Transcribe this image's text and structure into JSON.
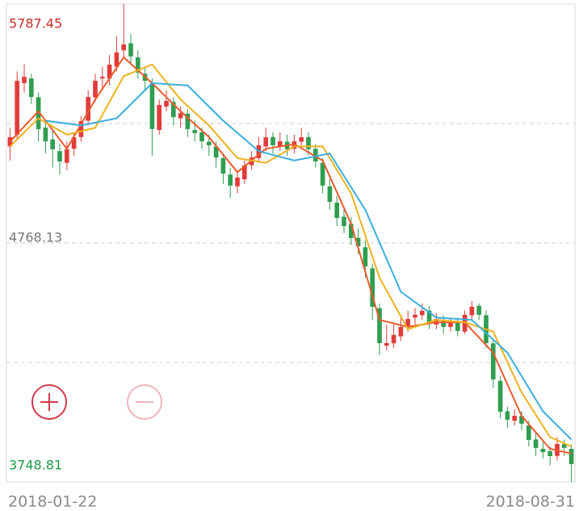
{
  "chart_data": {
    "type": "candlestick",
    "categories": [
      "2018-01-22",
      null,
      null,
      null,
      null,
      null,
      null,
      null,
      null,
      null,
      null,
      null,
      null,
      null,
      null,
      null,
      null,
      null,
      null,
      null,
      null,
      null,
      null,
      null,
      null,
      null,
      null,
      null,
      null,
      null,
      null,
      null,
      null,
      null,
      null,
      null,
      null,
      null,
      null,
      null,
      null,
      null,
      null,
      null,
      null,
      null,
      null,
      null,
      null,
      null,
      null,
      null,
      null,
      null,
      null,
      null,
      null,
      null,
      null,
      null,
      null,
      null,
      null,
      null,
      null,
      null,
      null,
      null,
      null,
      null,
      null,
      null,
      null,
      null,
      null,
      null,
      null,
      null,
      null,
      "2018-08-31"
    ],
    "ohlc": [
      [
        5180,
        5260,
        5120,
        5219
      ],
      [
        5230,
        5500,
        5210,
        5460
      ],
      [
        5450,
        5530,
        5410,
        5477
      ],
      [
        5470,
        5490,
        5360,
        5391
      ],
      [
        5390,
        5410,
        5200,
        5254
      ],
      [
        5260,
        5290,
        5150,
        5202
      ],
      [
        5210,
        5250,
        5090,
        5168
      ],
      [
        5160,
        5190,
        5060,
        5116
      ],
      [
        5110,
        5200,
        5080,
        5168
      ],
      [
        5170,
        5240,
        5140,
        5219
      ],
      [
        5220,
        5310,
        5200,
        5288
      ],
      [
        5290,
        5420,
        5270,
        5391
      ],
      [
        5390,
        5490,
        5370,
        5460
      ],
      [
        5470,
        5520,
        5420,
        5477
      ],
      [
        5470,
        5570,
        5440,
        5529
      ],
      [
        5520,
        5650,
        5500,
        5581
      ],
      [
        5590,
        5787.45,
        5560,
        5615
      ],
      [
        5620,
        5660,
        5530,
        5564
      ],
      [
        5560,
        5590,
        5470,
        5495
      ],
      [
        5490,
        5520,
        5420,
        5460
      ],
      [
        5450,
        5470,
        5140,
        5254
      ],
      [
        5250,
        5380,
        5230,
        5357
      ],
      [
        5350,
        5420,
        5330,
        5374
      ],
      [
        5370,
        5390,
        5270,
        5305
      ],
      [
        5300,
        5350,
        5260,
        5322
      ],
      [
        5320,
        5340,
        5220,
        5254
      ],
      [
        5250,
        5290,
        5200,
        5237
      ],
      [
        5240,
        5260,
        5170,
        5202
      ],
      [
        5200,
        5230,
        5140,
        5185
      ],
      [
        5180,
        5200,
        5090,
        5133
      ],
      [
        5130,
        5150,
        5020,
        5064
      ],
      [
        5060,
        5090,
        4960,
        5013
      ],
      [
        5010,
        5070,
        4980,
        5047
      ],
      [
        5040,
        5120,
        5020,
        5099
      ],
      [
        5100,
        5160,
        5080,
        5133
      ],
      [
        5130,
        5220,
        5110,
        5185
      ],
      [
        5180,
        5260,
        5160,
        5219
      ],
      [
        5220,
        5240,
        5150,
        5185
      ],
      [
        5180,
        5240,
        5160,
        5202
      ],
      [
        5200,
        5230,
        5140,
        5168
      ],
      [
        5170,
        5230,
        5150,
        5202
      ],
      [
        5200,
        5260,
        5180,
        5219
      ],
      [
        5220,
        5240,
        5140,
        5168
      ],
      [
        5170,
        5190,
        5090,
        5116
      ],
      [
        5110,
        5130,
        4980,
        5013
      ],
      [
        5010,
        5040,
        4910,
        4944
      ],
      [
        4940,
        4970,
        4840,
        4875
      ],
      [
        4880,
        4920,
        4810,
        4840
      ],
      [
        4850,
        4880,
        4760,
        4789
      ],
      [
        4790,
        4830,
        4720,
        4754
      ],
      [
        4750,
        4780,
        4620,
        4668
      ],
      [
        4660,
        4680,
        4440,
        4496
      ],
      [
        4490,
        4510,
        4290,
        4341
      ],
      [
        4330,
        4420,
        4310,
        4341
      ],
      [
        4340,
        4420,
        4320,
        4376
      ],
      [
        4370,
        4450,
        4350,
        4410
      ],
      [
        4410,
        4480,
        4390,
        4444
      ],
      [
        4450,
        4490,
        4420,
        4462
      ],
      [
        4460,
        4510,
        4440,
        4479
      ],
      [
        4480,
        4500,
        4400,
        4427
      ],
      [
        4420,
        4470,
        4400,
        4444
      ],
      [
        4440,
        4460,
        4380,
        4410
      ],
      [
        4410,
        4450,
        4390,
        4427
      ],
      [
        4430,
        4450,
        4370,
        4393
      ],
      [
        4390,
        4480,
        4380,
        4462
      ],
      [
        4460,
        4520,
        4440,
        4496
      ],
      [
        4500,
        4510,
        4440,
        4462
      ],
      [
        4460,
        4480,
        4320,
        4341
      ],
      [
        4340,
        4360,
        4150,
        4186
      ],
      [
        4180,
        4200,
        4020,
        4048
      ],
      [
        4050,
        4070,
        3980,
        4014
      ],
      [
        4010,
        4060,
        3990,
        4031
      ],
      [
        4030,
        4050,
        3970,
        3997
      ],
      [
        3990,
        4010,
        3900,
        3928
      ],
      [
        3930,
        3960,
        3860,
        3894
      ],
      [
        3890,
        3920,
        3850,
        3876
      ],
      [
        3880,
        3900,
        3820,
        3859
      ],
      [
        3860,
        3940,
        3840,
        3911
      ],
      [
        3910,
        3930,
        3860,
        3894
      ],
      [
        3890,
        3910,
        3748.81,
        3825
      ]
    ],
    "up_color": "#e23b3b",
    "down_color": "#2e9e4f",
    "series": [
      {
        "color": "#ec5a2c",
        "x": [
          0,
          4,
          8,
          12,
          16,
          20,
          24,
          28,
          32,
          36,
          40,
          44,
          48,
          52,
          56,
          60,
          64,
          68,
          72,
          76,
          79
        ],
        "values": [
          5200,
          5330,
          5170,
          5380,
          5560,
          5450,
          5330,
          5220,
          5070,
          5170,
          5190,
          5120,
          4850,
          4440,
          4410,
          4430,
          4430,
          4300,
          4030,
          3890,
          3870
        ]
      },
      {
        "color": "#efb21f",
        "x": [
          0,
          4,
          8,
          12,
          16,
          20,
          24,
          28,
          32,
          36,
          40,
          44,
          48,
          52,
          56,
          60,
          64,
          68,
          72,
          76,
          79
        ],
        "values": [
          5180,
          5300,
          5230,
          5260,
          5480,
          5530,
          5380,
          5270,
          5130,
          5110,
          5180,
          5180,
          4980,
          4620,
          4400,
          4440,
          4430,
          4390,
          4130,
          3940,
          3900
        ]
      },
      {
        "color": "#3aaee0",
        "x": [
          5,
          10,
          15,
          20,
          25,
          30,
          35,
          40,
          45,
          50,
          55,
          60,
          65,
          70,
          75,
          79
        ],
        "values": [
          5290,
          5270,
          5300,
          5450,
          5440,
          5290,
          5160,
          5120,
          5150,
          4910,
          4560,
          4450,
          4440,
          4300,
          4050,
          3930
        ]
      }
    ],
    "ylim": [
      3748.81,
      5787.45
    ],
    "yticks": [
      3748.81,
      4768.13,
      5787.45
    ],
    "ytick_colors": [
      "#1e9a4a",
      "#777777",
      "#cc2a2a"
    ],
    "grid_values": [
      4258.47,
      4768.13,
      5277.79
    ]
  }
}
